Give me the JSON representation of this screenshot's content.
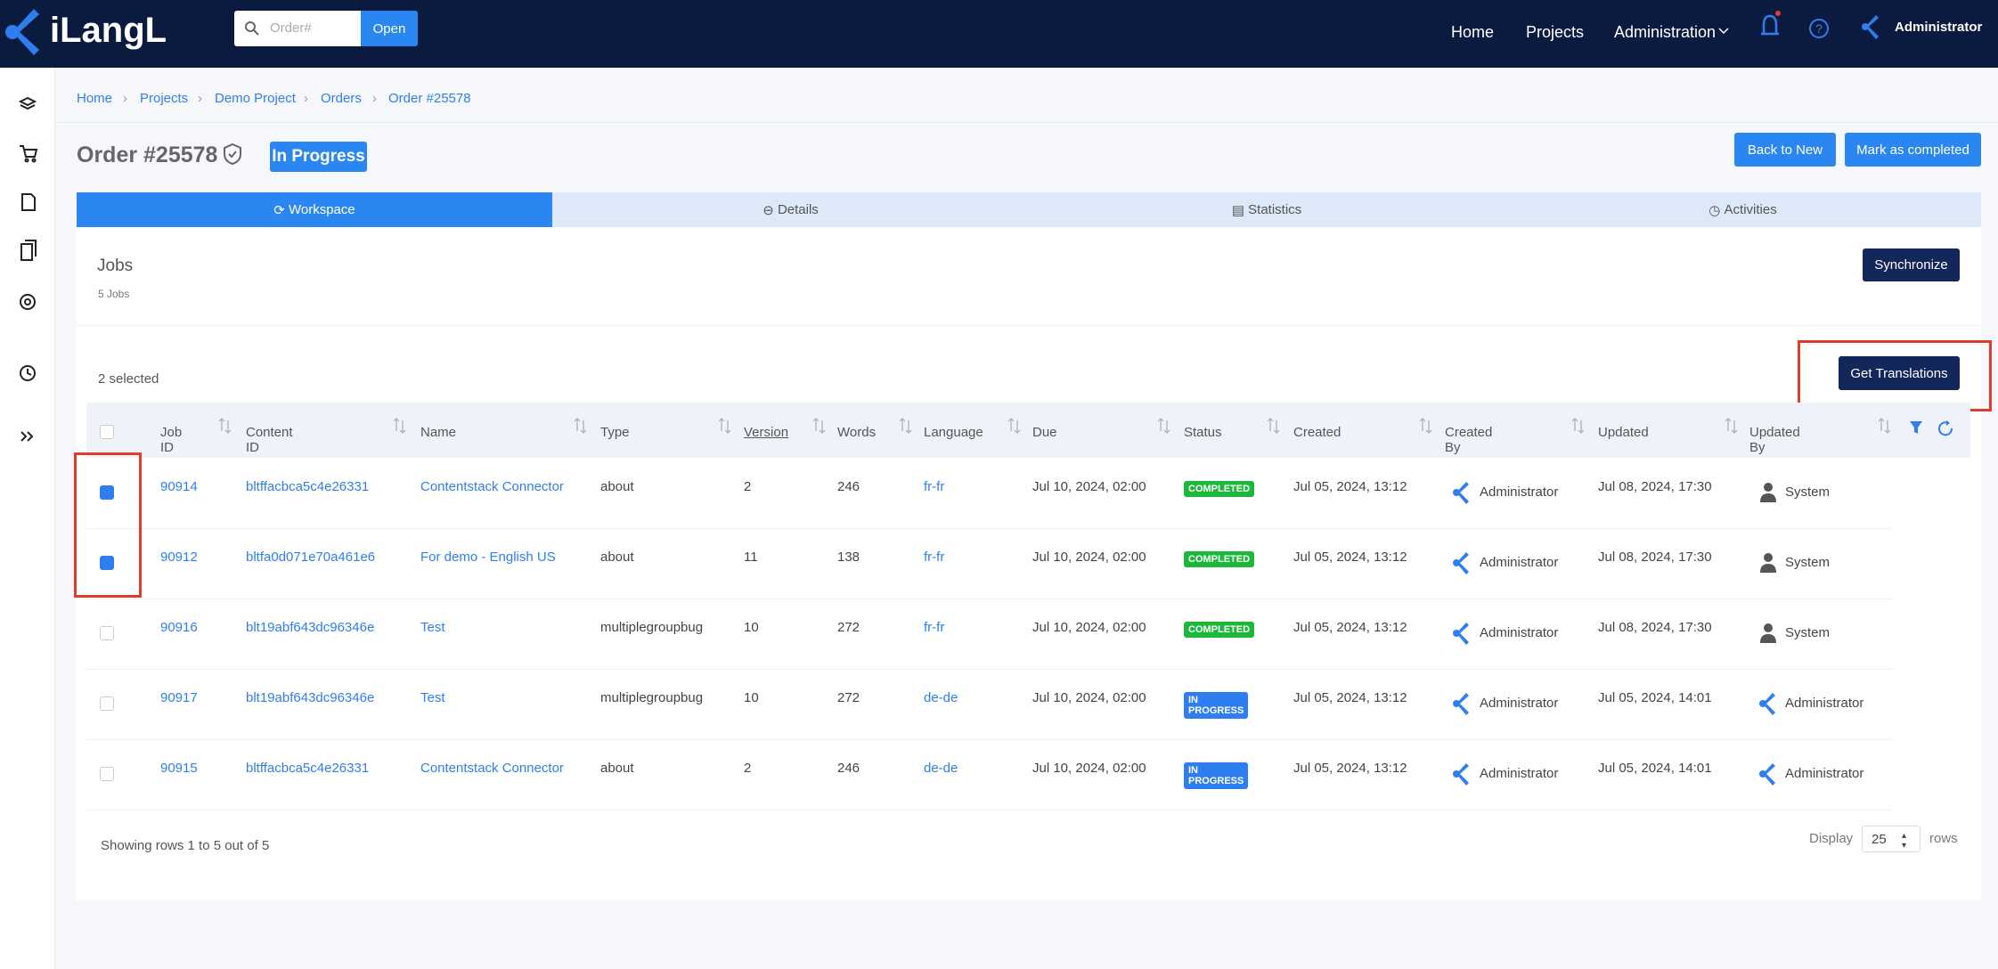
{
  "header": {
    "logo": "iLangL",
    "search_placeholder": "Order#",
    "search_button": "Open",
    "nav": [
      "Home",
      "Projects",
      "Administration"
    ],
    "user": "Administrator"
  },
  "breadcrumbs": [
    "Home",
    "Projects",
    "Demo Project",
    "Orders",
    "Order #25578"
  ],
  "order": {
    "title": "Order #25578",
    "status": "In Progress",
    "buttons": [
      "Back to New",
      "Mark as completed"
    ]
  },
  "tabs": [
    "Workspace",
    "Details",
    "Statistics",
    "Activities"
  ],
  "jobs": {
    "title": "Jobs",
    "count": "5 Jobs",
    "sync_button": "Synchronize",
    "selected": "2 selected",
    "translations_button": "Get Translations"
  },
  "table": {
    "columns": [
      "Job ID",
      "Content ID",
      "Name",
      "Type",
      "Version",
      "Words",
      "Language",
      "Due",
      "Status",
      "Created",
      "Created By",
      "Updated",
      "Updated By"
    ],
    "rows": [
      {
        "checked": true,
        "status_color": "#1cb83a",
        "updated_by_avatar": "person",
        "cells": [
          "90914",
          "bltffacbca5c4e26331",
          "Contentstack Connector",
          "about",
          2,
          246,
          "fr-fr",
          "Jul 10, 2024, 02:00",
          "COMPLETED",
          "Jul 05, 2024, 13:12",
          "Administrator",
          "Jul 08, 2024, 17:30",
          "System"
        ]
      },
      {
        "checked": true,
        "status_color": "#1cb83a",
        "updated_by_avatar": "person",
        "cells": [
          "90912",
          "bltfa0d071e70a461e6",
          "For demo - English US",
          "about",
          11,
          138,
          "fr-fr",
          "Jul 10, 2024, 02:00",
          "COMPLETED",
          "Jul 05, 2024, 13:12",
          "Administrator",
          "Jul 08, 2024, 17:30",
          "System"
        ]
      },
      {
        "checked": false,
        "status_color": "#1cb83a",
        "updated_by_avatar": "person",
        "cells": [
          "90916",
          "blt19abf643dc96346e",
          "Test",
          "multiplegroupbug",
          10,
          272,
          "fr-fr",
          "Jul 10, 2024, 02:00",
          "COMPLETED",
          "Jul 05, 2024, 13:12",
          "Administrator",
          "Jul 08, 2024, 17:30",
          "System"
        ]
      },
      {
        "checked": false,
        "status_color": "#2f7ef0",
        "updated_by_avatar": "logo",
        "cells": [
          "90917",
          "blt19abf643dc96346e",
          "Test",
          "multiplegroupbug",
          10,
          272,
          "de-de",
          "Jul 10, 2024, 02:00",
          "IN PROGRESS",
          "Jul 05, 2024, 13:12",
          "Administrator",
          "Jul 05, 2024, 14:01",
          "Administrator"
        ]
      },
      {
        "checked": false,
        "status_color": "#2f7ef0",
        "updated_by_avatar": "logo",
        "cells": [
          "90915",
          "bltffacbca5c4e26331",
          "Contentstack Connector",
          "about",
          2,
          246,
          "de-de",
          "Jul 10, 2024, 02:00",
          "IN PROGRESS",
          "Jul 05, 2024, 13:12",
          "Administrator",
          "Jul 05, 2024, 14:01",
          "Administrator"
        ]
      }
    ]
  },
  "footer": {
    "showing": "Showing rows 1 to 5 out of 5",
    "display": "Display",
    "page_size": "25",
    "rows": "rows"
  }
}
